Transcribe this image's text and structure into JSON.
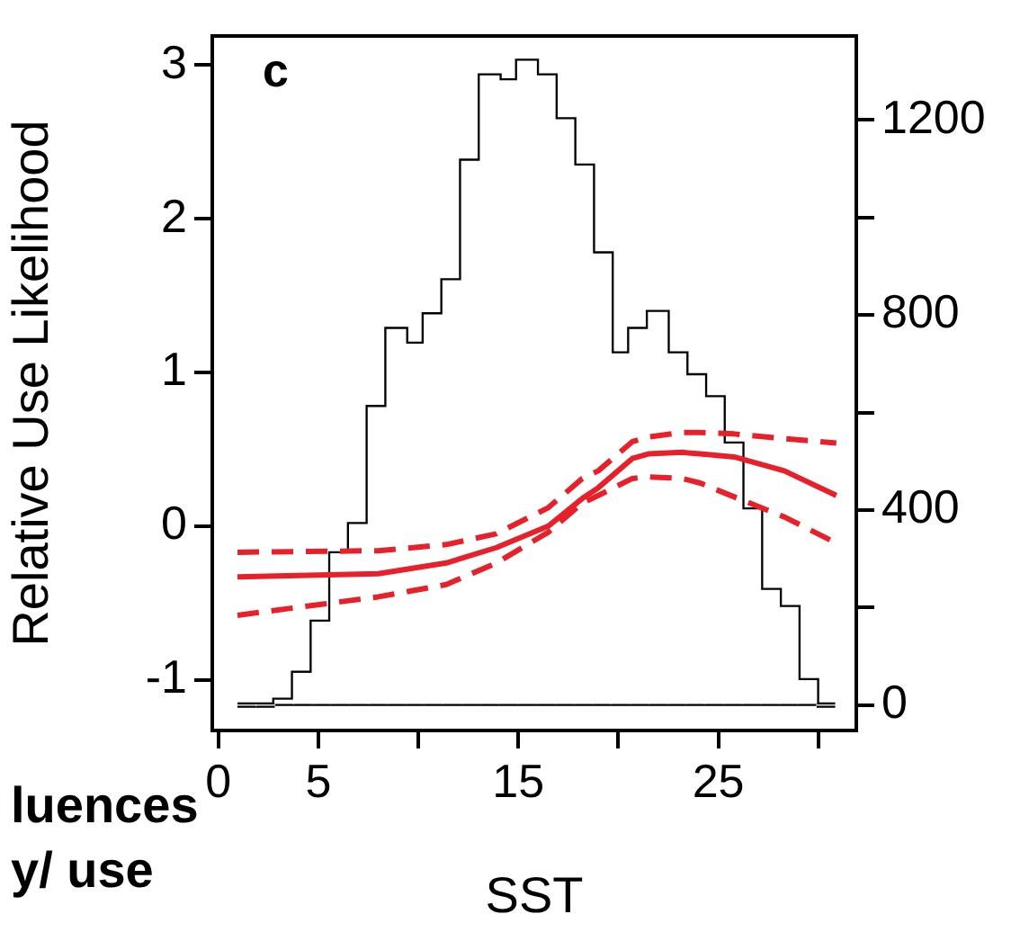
{
  "chart_data": {
    "type": "histogram",
    "xlabel": "SST",
    "y2label": "Relative Use Likelihood",
    "annotations": [
      "c",
      "luences",
      "y/ use"
    ],
    "grid": false,
    "legend": false,
    "xlim": [
      -0.3,
      31.9
    ],
    "xticks": [
      0,
      5,
      {
        "value": 10,
        "label": null
      },
      15,
      {
        "value": 20,
        "label": null
      },
      25,
      {
        "value": 30,
        "label": null
      }
    ],
    "ylim": [
      -52,
      1372
    ],
    "yticks": [
      0,
      {
        "value": 200,
        "label": null
      },
      400,
      {
        "value": 600,
        "label": null
      },
      800,
      {
        "value": 1000,
        "label": null
      },
      1200
    ],
    "y2lim": [
      -1.33,
      3.19
    ],
    "y2ticks": [
      -1,
      0,
      1,
      2,
      3
    ],
    "color": "#ffffff",
    "bins": [
      0.96,
      1.89,
      2.83,
      3.76,
      4.7,
      5.63,
      6.56,
      7.5,
      8.43,
      9.37,
      10.3,
      11.23,
      12.17,
      13.1,
      14.04,
      14.97,
      15.9,
      16.84,
      17.77,
      18.71,
      19.64,
      20.57,
      21.51,
      22.44,
      23.38,
      24.31,
      25.24,
      26.18,
      27.11,
      28.05,
      28.98,
      29.91,
      30.85
    ],
    "values": [
      0,
      0,
      10,
      65,
      170,
      310,
      370,
      610,
      770,
      740,
      800,
      870,
      1115,
      1290,
      1280,
      1320,
      1290,
      1200,
      1105,
      925,
      720,
      770,
      805,
      720,
      675,
      630,
      535,
      400,
      235,
      200,
      50,
      0
    ],
    "series": [
      {
        "type": "line",
        "axis": "y2",
        "color": "#e8202a",
        "line_style": "solid",
        "x": [
          0.96,
          8,
          11.4,
          13.9,
          16.5,
          18.2,
          19,
          20.7,
          21.5,
          23.2,
          24.1,
          25.8,
          28.3,
          30.9
        ],
        "values": [
          -0.33,
          -0.31,
          -0.24,
          -0.14,
          0,
          0.18,
          0.25,
          0.44,
          0.47,
          0.48,
          0.47,
          0.45,
          0.36,
          0.2
        ]
      },
      {
        "type": "line",
        "axis": "y2",
        "color": "#e8202a",
        "line_style": "dashed",
        "x": [
          0.96,
          8,
          11.4,
          13.9,
          16.5,
          18.2,
          19,
          20.7,
          21.5,
          23.2,
          24.1,
          25.8,
          28.3,
          30.9
        ],
        "values": [
          -0.58,
          -0.46,
          -0.38,
          -0.24,
          -0.04,
          0.15,
          0.2,
          0.31,
          0.32,
          0.31,
          0.28,
          0.19,
          0.06,
          -0.11
        ]
      },
      {
        "type": "line",
        "axis": "y2",
        "color": "#e8202a",
        "line_style": "dashed",
        "x": [
          0.96,
          8,
          11.4,
          13.9,
          16.5,
          18.2,
          19,
          20.7,
          21.5,
          23.2,
          24.1,
          25.8,
          28.3,
          30.9
        ],
        "values": [
          -0.17,
          -0.16,
          -0.12,
          -0.05,
          0.12,
          0.31,
          0.36,
          0.55,
          0.58,
          0.61,
          0.61,
          0.6,
          0.57,
          0.54
        ]
      }
    ]
  }
}
